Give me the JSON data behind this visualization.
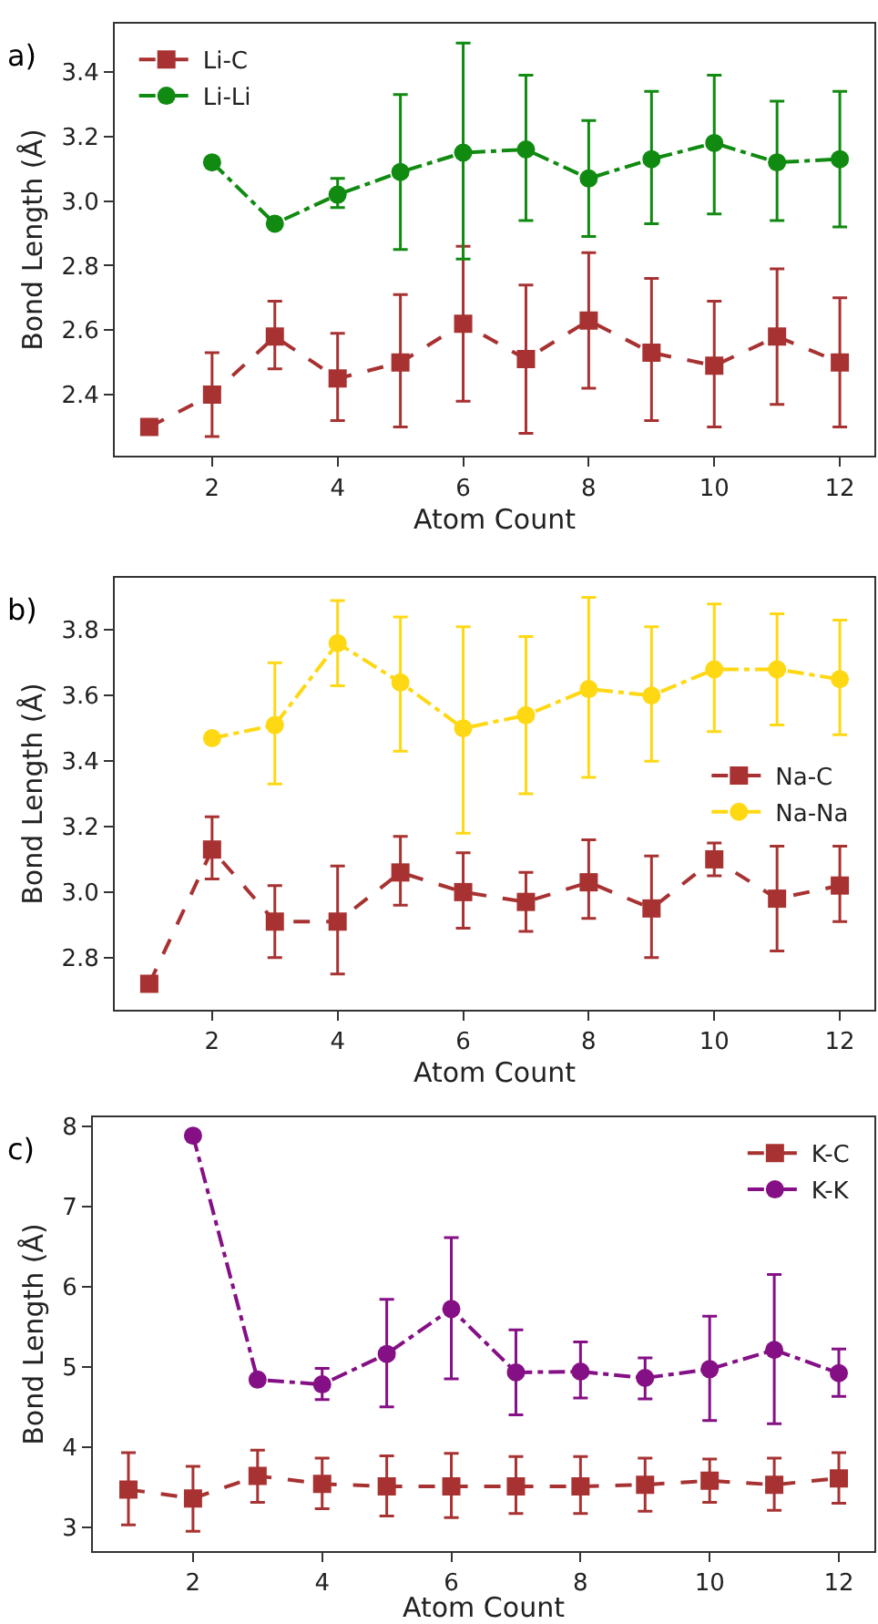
{
  "chart_data": [
    {
      "type": "line",
      "xlabel": "Atom Count",
      "ylabel": "Bond Length (Å)",
      "annotations": [
        "a)"
      ],
      "x": [
        1,
        2,
        3,
        4,
        5,
        6,
        7,
        8,
        9,
        10,
        11,
        12
      ],
      "xlim": [
        0.45,
        12.55
      ],
      "xticks": [
        2,
        4,
        6,
        8,
        10,
        12
      ],
      "ylim": [
        2.21,
        3.55
      ],
      "yticks": [
        2.4,
        2.6,
        2.8,
        {
          "value": 3,
          "label": "3.0"
        },
        3.2,
        3.4
      ],
      "legend": "top left",
      "series": [
        {
          "name": "Li-C",
          "color": "#a83232",
          "marker": "square",
          "line_style": "dashed",
          "values": [
            2.3,
            2.4,
            2.58,
            2.45,
            2.5,
            2.62,
            2.51,
            2.63,
            2.53,
            2.49,
            2.58,
            2.5
          ],
          "errors": [
            null,
            [
              2.27,
              2.53
            ],
            [
              2.48,
              2.69
            ],
            [
              2.32,
              2.59
            ],
            [
              2.3,
              2.71
            ],
            [
              2.38,
              2.86
            ],
            [
              2.28,
              2.74
            ],
            [
              2.42,
              2.84
            ],
            [
              2.32,
              2.76
            ],
            [
              2.3,
              2.69
            ],
            [
              2.37,
              2.79
            ],
            [
              2.3,
              2.7
            ]
          ]
        },
        {
          "name": "Li-Li",
          "color": "#108a10",
          "marker": "circle",
          "line_style": "dashdot",
          "values": [
            null,
            3.12,
            2.93,
            3.02,
            3.09,
            3.15,
            3.16,
            3.07,
            3.13,
            3.18,
            3.12,
            3.13
          ],
          "errors": [
            null,
            null,
            null,
            [
              2.98,
              3.07
            ],
            [
              2.85,
              3.33
            ],
            [
              2.82,
              3.49
            ],
            [
              2.94,
              3.39
            ],
            [
              2.89,
              3.25
            ],
            [
              2.93,
              3.34
            ],
            [
              2.96,
              3.39
            ],
            [
              2.94,
              3.31
            ],
            [
              2.92,
              3.34
            ]
          ]
        }
      ]
    },
    {
      "type": "line",
      "xlabel": "Atom Count",
      "ylabel": "Bond Length (Å)",
      "annotations": [
        "b)"
      ],
      "x": [
        1,
        2,
        3,
        4,
        5,
        6,
        7,
        8,
        9,
        10,
        11,
        12
      ],
      "xlim": [
        0.45,
        12.55
      ],
      "xticks": [
        2,
        4,
        6,
        8,
        10,
        12
      ],
      "ylim": [
        2.64,
        3.96
      ],
      "yticks": [
        2.8,
        {
          "value": 3,
          "label": "3.0"
        },
        3.2,
        3.4,
        3.6,
        3.8
      ],
      "legend": "right",
      "series": [
        {
          "name": "Na-C",
          "color": "#a83232",
          "marker": "square",
          "line_style": "dashed",
          "values": [
            2.72,
            3.13,
            2.91,
            2.91,
            3.06,
            3.0,
            2.97,
            3.03,
            2.95,
            3.1,
            2.98,
            3.02
          ],
          "errors": [
            null,
            [
              3.04,
              3.23
            ],
            [
              2.8,
              3.02
            ],
            [
              2.75,
              3.08
            ],
            [
              2.96,
              3.17
            ],
            [
              2.89,
              3.12
            ],
            [
              2.88,
              3.06
            ],
            [
              2.92,
              3.16
            ],
            [
              2.8,
              3.11
            ],
            [
              3.05,
              3.15
            ],
            [
              2.82,
              3.14
            ],
            [
              2.91,
              3.14
            ]
          ]
        },
        {
          "name": "Na-Na",
          "color": "#ffd814",
          "marker": "circle",
          "line_style": "dashdot",
          "values": [
            null,
            3.47,
            3.51,
            3.76,
            3.64,
            3.5,
            3.54,
            3.62,
            3.6,
            3.68,
            3.68,
            3.65
          ],
          "errors": [
            null,
            null,
            [
              3.33,
              3.7
            ],
            [
              3.63,
              3.89
            ],
            [
              3.43,
              3.84
            ],
            [
              3.18,
              3.81
            ],
            [
              3.3,
              3.78
            ],
            [
              3.35,
              3.9
            ],
            [
              3.4,
              3.81
            ],
            [
              3.49,
              3.88
            ],
            [
              3.51,
              3.85
            ],
            [
              3.48,
              3.83
            ]
          ]
        }
      ]
    },
    {
      "type": "line",
      "xlabel": "Atom Count",
      "ylabel": "Bond Length (Å)",
      "annotations": [
        "c)"
      ],
      "x": [
        1,
        2,
        3,
        4,
        5,
        6,
        7,
        8,
        9,
        10,
        11,
        12
      ],
      "xlim": [
        0.45,
        12.55
      ],
      "xticks": [
        2,
        4,
        6,
        8,
        10,
        12
      ],
      "ylim": [
        2.7,
        8.11
      ],
      "yticks": [
        3,
        4,
        5,
        6,
        7,
        8
      ],
      "legend": "top right",
      "series": [
        {
          "name": "K-C",
          "color": "#a83232",
          "marker": "square",
          "line_style": "dashed",
          "values": [
            3.47,
            3.36,
            3.64,
            3.54,
            3.51,
            3.51,
            3.51,
            3.51,
            3.53,
            3.58,
            3.53,
            3.61
          ],
          "errors": [
            [
              3.03,
              3.93
            ],
            [
              2.95,
              3.76
            ],
            [
              3.31,
              3.96
            ],
            [
              3.23,
              3.86
            ],
            [
              3.14,
              3.89
            ],
            [
              3.12,
              3.92
            ],
            [
              3.17,
              3.88
            ],
            [
              3.17,
              3.88
            ],
            [
              3.2,
              3.86
            ],
            [
              3.31,
              3.85
            ],
            [
              3.21,
              3.86
            ],
            [
              3.3,
              3.93
            ]
          ]
        },
        {
          "name": "K-K",
          "color": "#851085",
          "marker": "circle",
          "line_style": "dashdot",
          "values": [
            null,
            7.88,
            4.84,
            4.78,
            5.16,
            5.72,
            4.93,
            4.94,
            4.86,
            4.97,
            5.21,
            4.92
          ],
          "errors": [
            null,
            null,
            null,
            [
              4.59,
              4.98
            ],
            [
              4.5,
              5.84
            ],
            [
              4.85,
              6.61
            ],
            [
              4.4,
              5.46
            ],
            [
              4.61,
              5.31
            ],
            [
              4.6,
              5.11
            ],
            [
              4.33,
              5.63
            ],
            [
              4.29,
              6.15
            ],
            [
              4.63,
              5.22
            ]
          ]
        }
      ]
    }
  ]
}
